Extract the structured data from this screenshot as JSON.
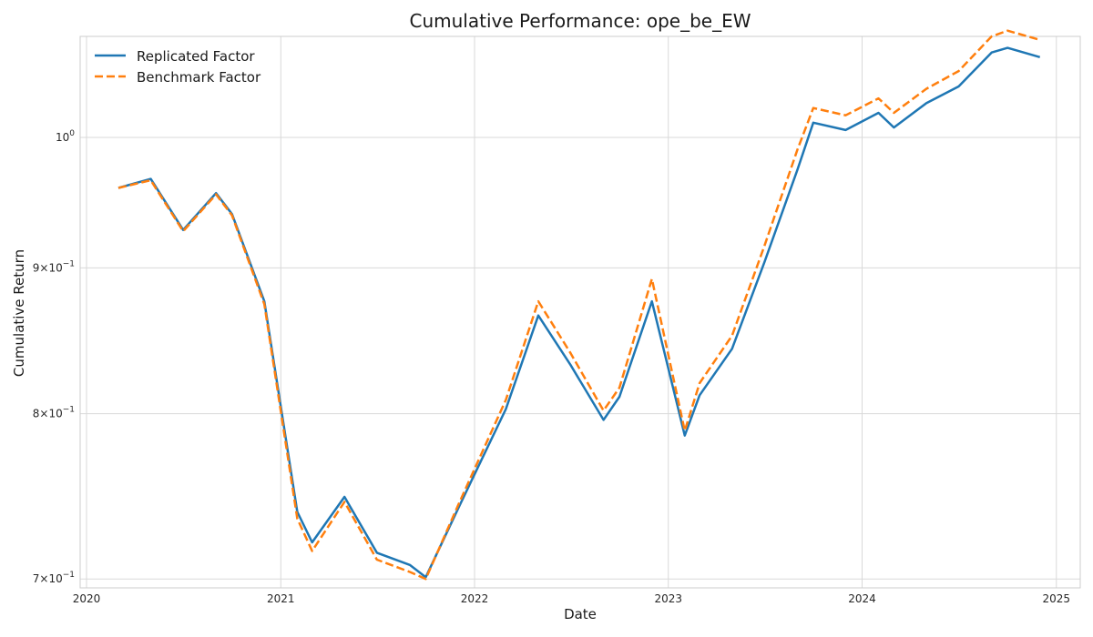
{
  "chart_data": {
    "type": "line",
    "title": "Cumulative Performance: ope_be_EW",
    "xlabel": "Date",
    "ylabel": "Cumulative Return",
    "yscale": "log",
    "grid": true,
    "legend_position": "top-left",
    "xlim": [
      "2019-12-20",
      "2025-02-15"
    ],
    "ylim": [
      0.695,
      1.085
    ],
    "x_ticks": [
      {
        "date": "2020-01-01",
        "label": "2020"
      },
      {
        "date": "2021-01-01",
        "label": "2021"
      },
      {
        "date": "2022-01-01",
        "label": "2022"
      },
      {
        "date": "2023-01-01",
        "label": "2023"
      },
      {
        "date": "2024-01-01",
        "label": "2024"
      },
      {
        "date": "2025-01-01",
        "label": "2025"
      }
    ],
    "y_ticks": [
      {
        "value": 0.7,
        "base": "7",
        "mult": "×",
        "pow": "10",
        "exp": "−1"
      },
      {
        "value": 0.8,
        "base": "8",
        "mult": "×",
        "pow": "10",
        "exp": "−1"
      },
      {
        "value": 0.9,
        "base": "9",
        "mult": "×",
        "pow": "10",
        "exp": "−1"
      },
      {
        "value": 1.0,
        "base": "",
        "mult": "",
        "pow": "10",
        "exp": "0"
      }
    ],
    "series": [
      {
        "name": "Replicated Factor",
        "color": "#1f77b4",
        "dash": "solid",
        "points": [
          [
            "2020-03-01",
            0.96
          ],
          [
            "2020-05-01",
            0.967
          ],
          [
            "2020-07-01",
            0.928
          ],
          [
            "2020-09-01",
            0.956
          ],
          [
            "2020-10-01",
            0.94
          ],
          [
            "2020-12-01",
            0.876
          ],
          [
            "2021-02-01",
            0.739
          ],
          [
            "2021-03-01",
            0.721
          ],
          [
            "2021-05-01",
            0.748
          ],
          [
            "2021-07-01",
            0.715
          ],
          [
            "2021-09-01",
            0.708
          ],
          [
            "2021-10-01",
            0.701
          ],
          [
            "2021-12-01",
            0.741
          ],
          [
            "2022-03-01",
            0.803
          ],
          [
            "2022-05-01",
            0.866
          ],
          [
            "2022-07-01",
            0.832
          ],
          [
            "2022-09-01",
            0.796
          ],
          [
            "2022-10-01",
            0.811
          ],
          [
            "2022-12-01",
            0.876
          ],
          [
            "2023-02-01",
            0.786
          ],
          [
            "2023-03-01",
            0.812
          ],
          [
            "2023-05-01",
            0.843
          ],
          [
            "2023-07-01",
            0.904
          ],
          [
            "2023-09-01",
            0.974
          ],
          [
            "2023-10-01",
            1.012
          ],
          [
            "2023-12-01",
            1.006
          ],
          [
            "2024-02-01",
            1.02
          ],
          [
            "2024-03-01",
            1.008
          ],
          [
            "2024-05-01",
            1.028
          ],
          [
            "2024-07-01",
            1.042
          ],
          [
            "2024-09-01",
            1.071
          ],
          [
            "2024-10-01",
            1.075
          ],
          [
            "2024-12-01",
            1.067
          ]
        ]
      },
      {
        "name": "Benchmark Factor",
        "color": "#ff7f0e",
        "dash": "dashed",
        "points": [
          [
            "2020-03-01",
            0.96
          ],
          [
            "2020-05-01",
            0.966
          ],
          [
            "2020-07-01",
            0.927
          ],
          [
            "2020-09-01",
            0.955
          ],
          [
            "2020-10-01",
            0.939
          ],
          [
            "2020-12-01",
            0.874
          ],
          [
            "2021-02-01",
            0.735
          ],
          [
            "2021-03-01",
            0.716
          ],
          [
            "2021-05-01",
            0.745
          ],
          [
            "2021-07-01",
            0.711
          ],
          [
            "2021-09-01",
            0.704
          ],
          [
            "2021-10-01",
            0.7
          ],
          [
            "2021-12-01",
            0.743
          ],
          [
            "2022-03-01",
            0.809
          ],
          [
            "2022-05-01",
            0.876
          ],
          [
            "2022-07-01",
            0.84
          ],
          [
            "2022-09-01",
            0.802
          ],
          [
            "2022-10-01",
            0.817
          ],
          [
            "2022-12-01",
            0.892
          ],
          [
            "2023-02-01",
            0.789
          ],
          [
            "2023-03-01",
            0.82
          ],
          [
            "2023-05-01",
            0.852
          ],
          [
            "2023-07-01",
            0.916
          ],
          [
            "2023-09-01",
            0.99
          ],
          [
            "2023-10-01",
            1.024
          ],
          [
            "2023-12-01",
            1.018
          ],
          [
            "2024-02-01",
            1.032
          ],
          [
            "2024-03-01",
            1.02
          ],
          [
            "2024-05-01",
            1.04
          ],
          [
            "2024-07-01",
            1.055
          ],
          [
            "2024-09-01",
            1.085
          ],
          [
            "2024-10-01",
            1.09
          ],
          [
            "2024-12-01",
            1.082
          ]
        ]
      }
    ]
  }
}
